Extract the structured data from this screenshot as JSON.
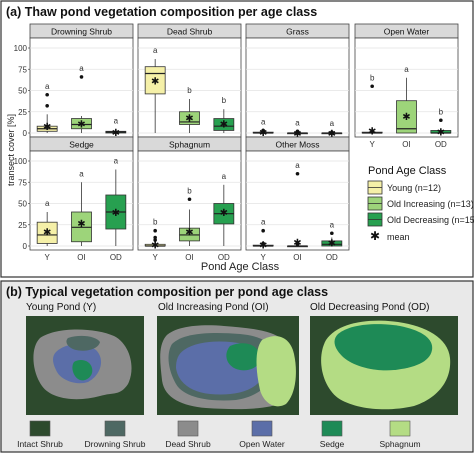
{
  "panel_a": {
    "title": "(a)  Thaw pond vegetation composition per age class",
    "ylabel": "transect cover [%]",
    "xlabel": "Pond Age Class",
    "legend": {
      "title": "Pond Age Class",
      "items": [
        {
          "label": "Young (n=12)",
          "color": "#f5f0a8"
        },
        {
          "label": "Old Increasing (n=13)",
          "color": "#9dd47a"
        },
        {
          "label": "Old Decreasing (n=15)",
          "color": "#27a050"
        }
      ],
      "mean_label": "mean",
      "mean_symbol": "✱"
    }
  },
  "panel_b": {
    "title": "(b)  Typical vegetation composition per pond age class",
    "pond_titles": [
      "Young Pond (Y)",
      "Old Increasing Pond (OI)",
      "Old Decreasing Pond (OD)"
    ],
    "legend": [
      {
        "label": "Intact Shrub",
        "color": "#2d4a2d"
      },
      {
        "label": "Drowning Shrub",
        "color": "#4e6863"
      },
      {
        "label": "Dead Shrub",
        "color": "#8c8c8c"
      },
      {
        "label": "Open Water",
        "color": "#5b6ea8"
      },
      {
        "label": "Sedge",
        "color": "#1e8a56"
      },
      {
        "label": "Sphagnum",
        "color": "#b4dc84"
      }
    ]
  },
  "chart_data": [
    {
      "type": "box",
      "title": "Drowning Shrub",
      "categories": [
        "Y",
        "OI",
        "OD"
      ],
      "ylim": [
        0,
        100
      ],
      "yticks": [
        0,
        25,
        50,
        75,
        100
      ],
      "boxes": [
        {
          "q1": 2,
          "median": 5,
          "q3": 8,
          "lo": 0,
          "hi": 22,
          "outliers": [
            32,
            45
          ],
          "mean": 8,
          "letter": "a"
        },
        {
          "q1": 5,
          "median": 10,
          "q3": 17,
          "lo": 0,
          "hi": 20,
          "outliers": [
            66
          ],
          "mean": 11,
          "letter": "a"
        },
        {
          "q1": 0,
          "median": 1,
          "q3": 2,
          "lo": 0,
          "hi": 4,
          "outliers": [],
          "mean": 1,
          "letter": "a"
        }
      ]
    },
    {
      "type": "box",
      "title": "Dead Shrub",
      "categories": [
        "Y",
        "OI",
        "OD"
      ],
      "ylim": [
        0,
        100
      ],
      "yticks": [
        0,
        25,
        50,
        75,
        100
      ],
      "boxes": [
        {
          "q1": 46,
          "median": 70,
          "q3": 78,
          "lo": 0,
          "hi": 87,
          "outliers": [],
          "mean": 62,
          "letter": "a"
        },
        {
          "q1": 10,
          "median": 13,
          "q3": 25,
          "lo": 0,
          "hi": 40,
          "outliers": [],
          "mean": 18,
          "letter": "b"
        },
        {
          "q1": 3,
          "median": 8,
          "q3": 17,
          "lo": 0,
          "hi": 28,
          "outliers": [],
          "mean": 11,
          "letter": "b"
        }
      ]
    },
    {
      "type": "box",
      "title": "Grass",
      "categories": [
        "Y",
        "OI",
        "OD"
      ],
      "ylim": [
        0,
        100
      ],
      "yticks": [
        0,
        25,
        50,
        75,
        100
      ],
      "boxes": [
        {
          "q1": 0,
          "median": 0,
          "q3": 1,
          "lo": 0,
          "hi": 1,
          "outliers": [
            2,
            3
          ],
          "mean": 1,
          "letter": "a"
        },
        {
          "q1": 0,
          "median": 0,
          "q3": 0,
          "lo": 0,
          "hi": 0,
          "outliers": [
            1,
            2
          ],
          "mean": 0,
          "letter": "a"
        },
        {
          "q1": 0,
          "median": 0,
          "q3": 0,
          "lo": 0,
          "hi": 0,
          "outliers": [
            1
          ],
          "mean": 0,
          "letter": "a"
        }
      ]
    },
    {
      "type": "box",
      "title": "Open Water",
      "categories": [
        "Y",
        "OI",
        "OD"
      ],
      "ylim": [
        0,
        100
      ],
      "yticks": [
        0,
        25,
        50,
        75,
        100
      ],
      "boxes": [
        {
          "q1": 0,
          "median": 0,
          "q3": 1,
          "lo": 0,
          "hi": 1,
          "outliers": [
            2,
            55
          ],
          "mean": 3,
          "letter": "b"
        },
        {
          "q1": 0,
          "median": 5,
          "q3": 38,
          "lo": 0,
          "hi": 65,
          "outliers": [],
          "mean": 20,
          "letter": "a"
        },
        {
          "q1": 0,
          "median": 0,
          "q3": 3,
          "lo": 0,
          "hi": 5,
          "outliers": [
            15
          ],
          "mean": 2,
          "letter": "b"
        }
      ]
    },
    {
      "type": "box",
      "title": "Sedge",
      "categories": [
        "Y",
        "OI",
        "OD"
      ],
      "ylim": [
        0,
        100
      ],
      "yticks": [
        0,
        25,
        50,
        75,
        100
      ],
      "boxes": [
        {
          "q1": 3,
          "median": 13,
          "q3": 28,
          "lo": 0,
          "hi": 40,
          "outliers": [],
          "mean": 17,
          "letter": "a"
        },
        {
          "q1": 5,
          "median": 22,
          "q3": 40,
          "lo": 0,
          "hi": 75,
          "outliers": [],
          "mean": 27,
          "letter": "a"
        },
        {
          "q1": 20,
          "median": 40,
          "q3": 60,
          "lo": 0,
          "hi": 90,
          "outliers": [],
          "mean": 40,
          "letter": "a"
        }
      ]
    },
    {
      "type": "box",
      "title": "Sphagnum",
      "categories": [
        "Y",
        "OI",
        "OD"
      ],
      "ylim": [
        0,
        100
      ],
      "yticks": [
        0,
        25,
        50,
        75,
        100
      ],
      "boxes": [
        {
          "q1": 0,
          "median": 0,
          "q3": 2,
          "lo": 0,
          "hi": 2,
          "outliers": [
            7,
            10,
            18
          ],
          "mean": 2,
          "letter": "b"
        },
        {
          "q1": 6,
          "median": 13,
          "q3": 21,
          "lo": 0,
          "hi": 43,
          "outliers": [
            55
          ],
          "mean": 17,
          "letter": "b"
        },
        {
          "q1": 26,
          "median": 38,
          "q3": 50,
          "lo": 0,
          "hi": 72,
          "outliers": [],
          "mean": 40,
          "letter": "a"
        }
      ]
    },
    {
      "type": "box",
      "title": "Other Moss",
      "categories": [
        "Y",
        "OI",
        "OD"
      ],
      "ylim": [
        0,
        100
      ],
      "yticks": [
        0,
        25,
        50,
        75,
        100
      ],
      "boxes": [
        {
          "q1": 0,
          "median": 0,
          "q3": 1,
          "lo": 0,
          "hi": 1,
          "outliers": [
            3,
            18
          ],
          "mean": 2,
          "letter": "a"
        },
        {
          "q1": 0,
          "median": 0,
          "q3": 0,
          "lo": 0,
          "hi": 0,
          "outliers": [
            2,
            85
          ],
          "mean": 5,
          "letter": "a"
        },
        {
          "q1": 0,
          "median": 2,
          "q3": 6,
          "lo": 0,
          "hi": 10,
          "outliers": [
            15
          ],
          "mean": 4,
          "letter": "a"
        }
      ]
    }
  ]
}
